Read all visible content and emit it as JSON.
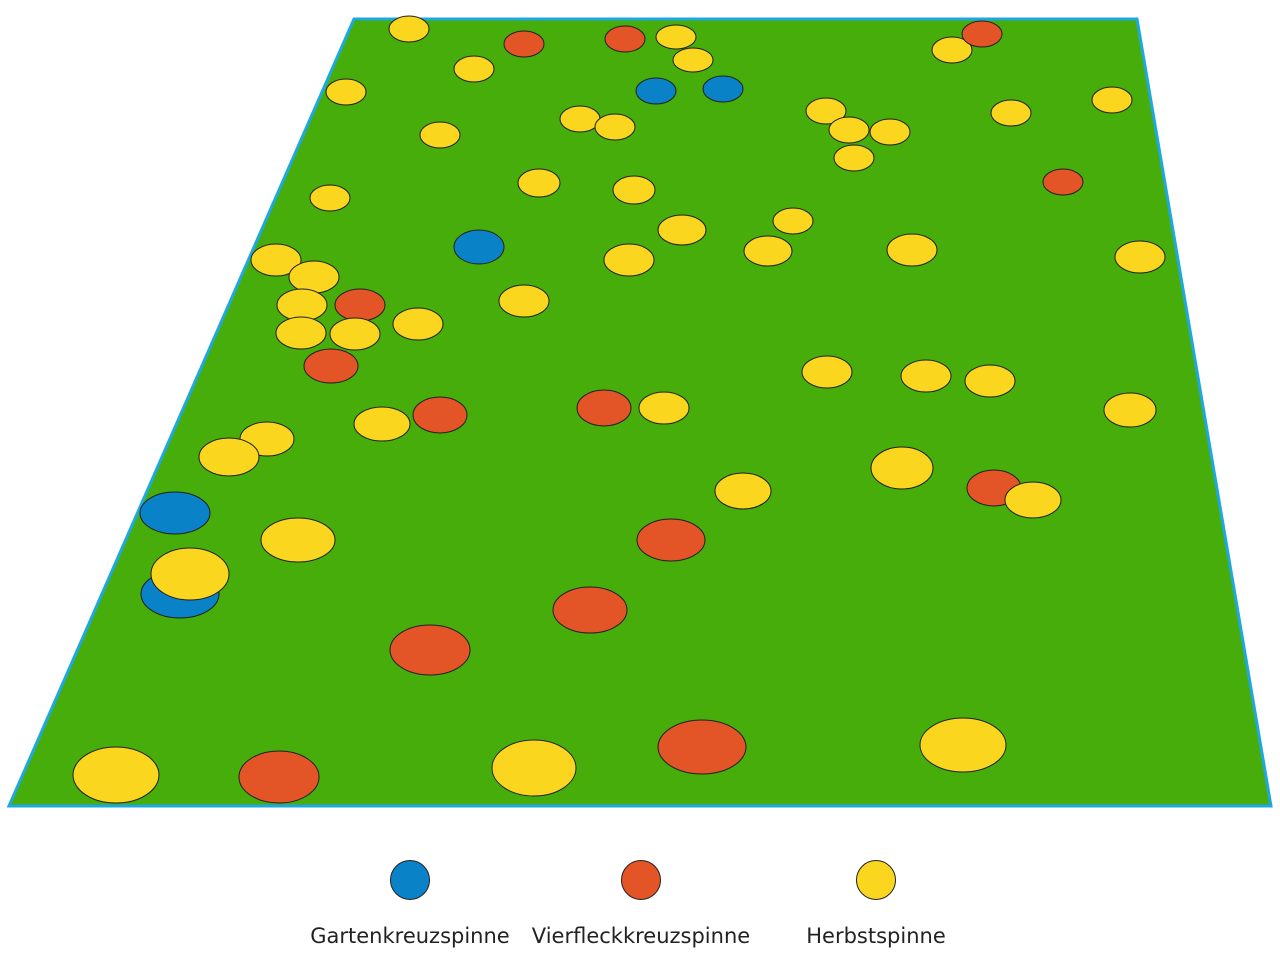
{
  "field": {
    "fill": "#46ad0b",
    "border": "#1ea8e0"
  },
  "legend": [
    {
      "label": "Gartenkreuzspinne",
      "color": "#0a82c8"
    },
    {
      "label": "Vierfleckkreuzspinne",
      "color": "#e35426"
    },
    {
      "label": "Herbstspinne",
      "color": "#fad61e"
    }
  ]
}
